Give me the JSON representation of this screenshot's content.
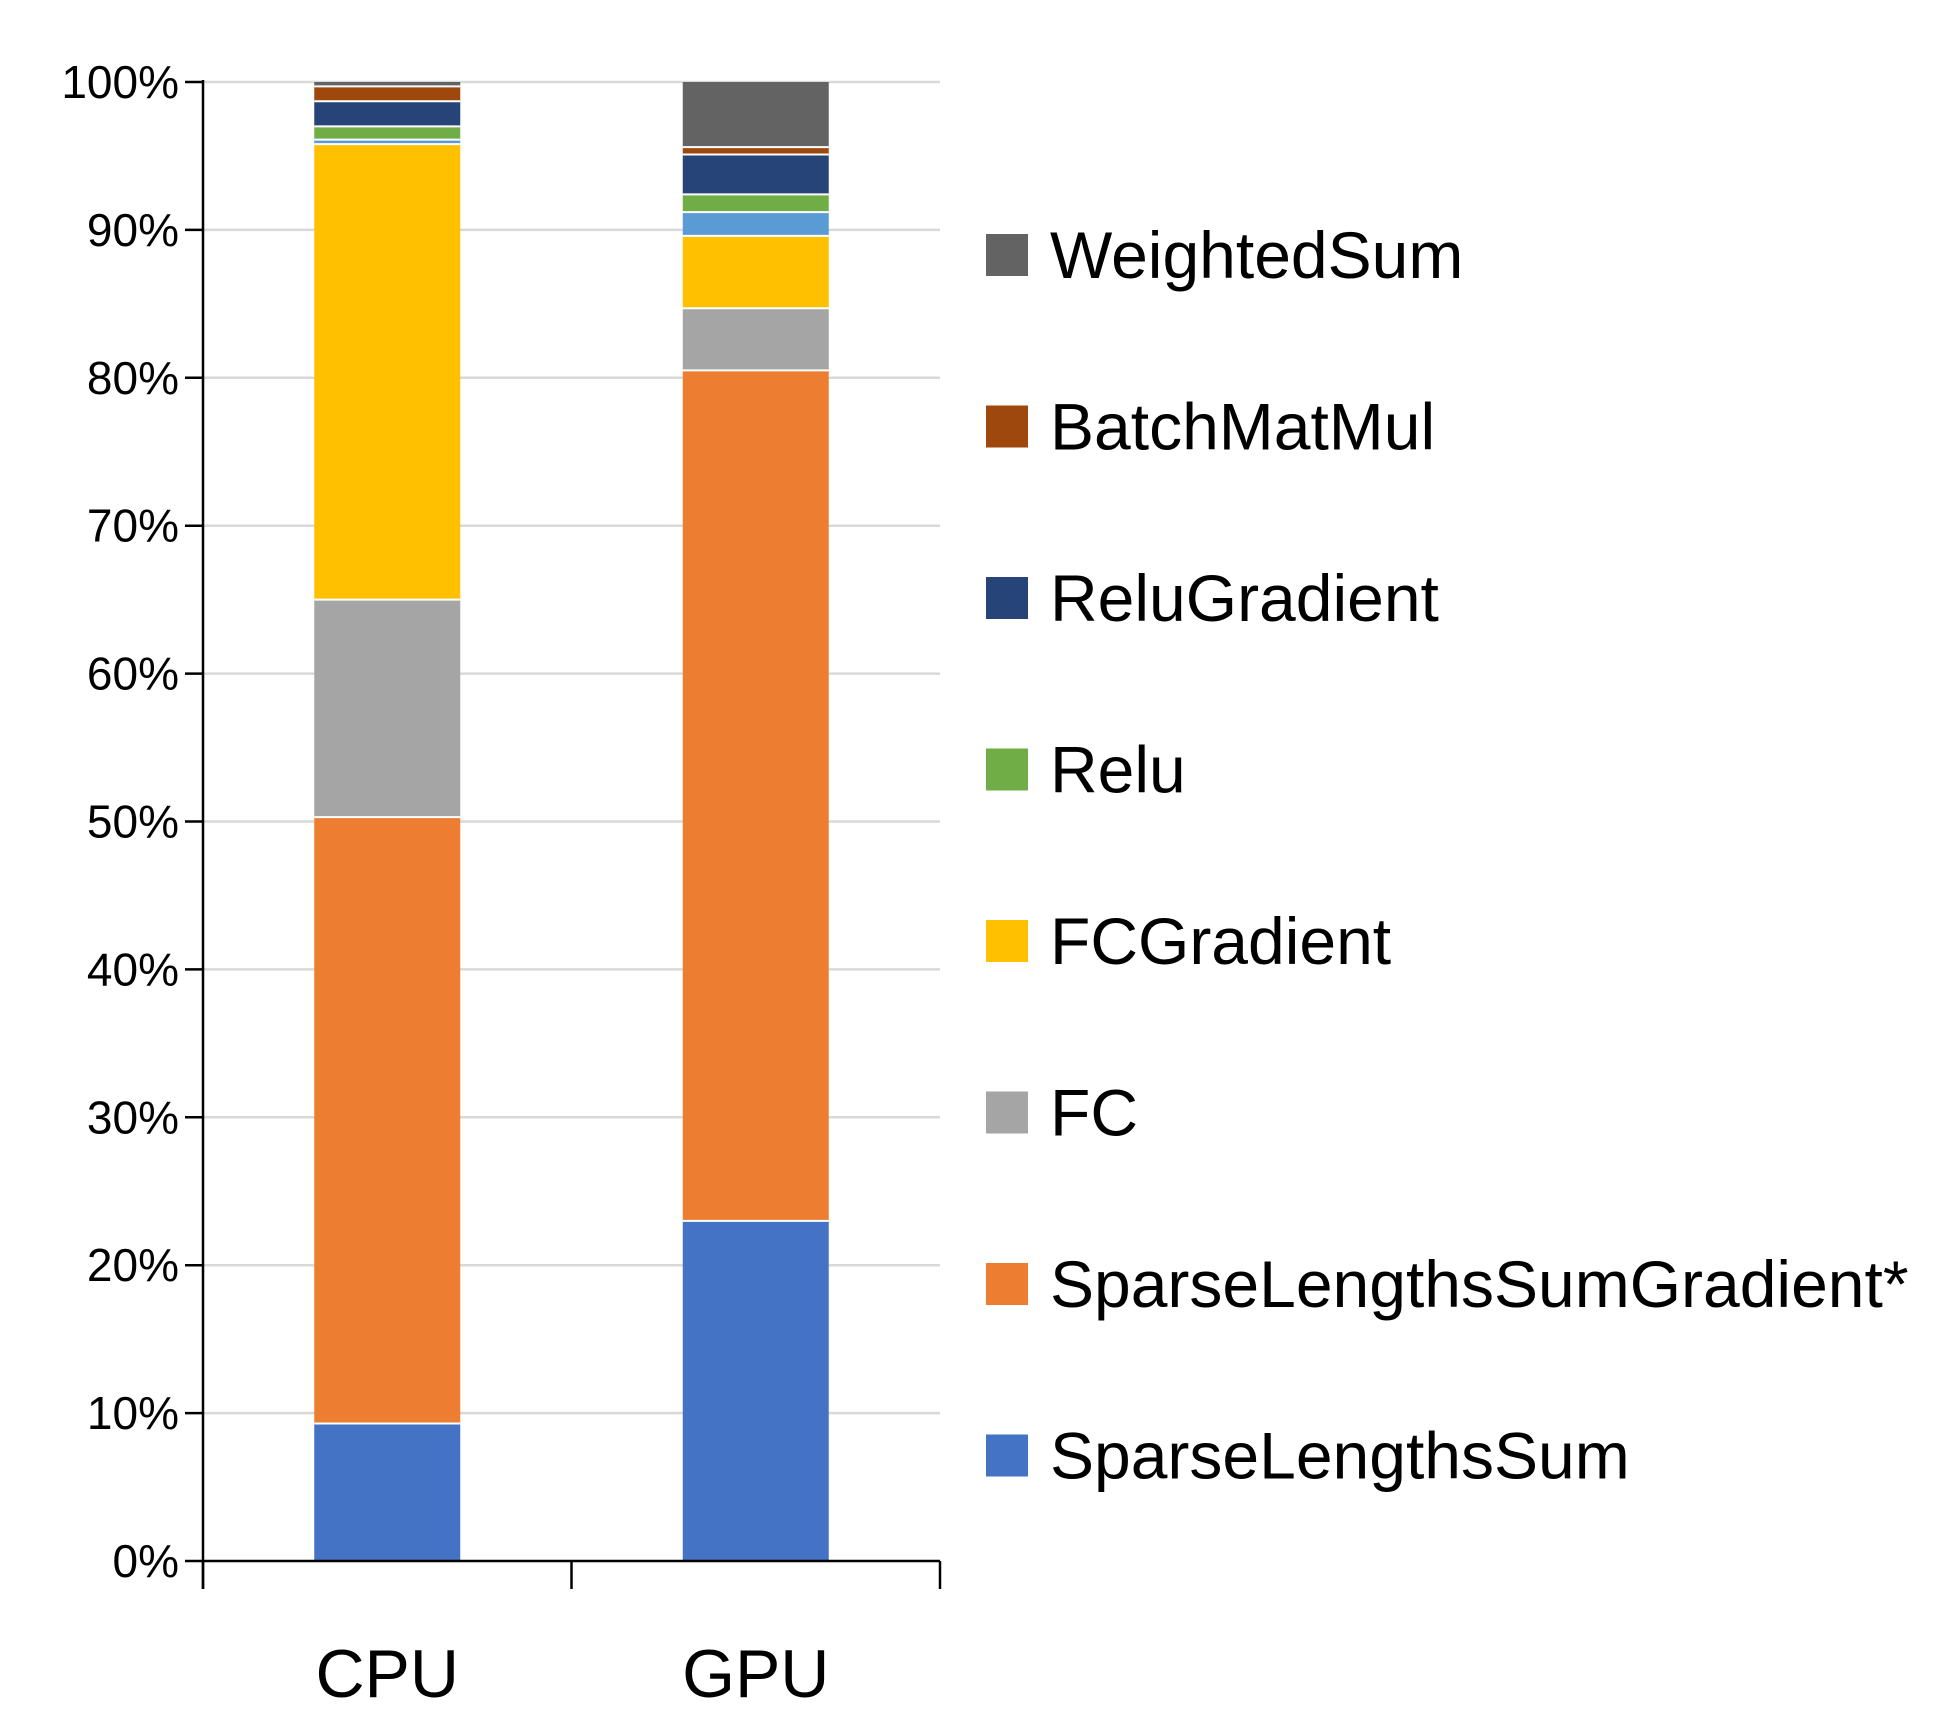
{
  "chart_data": {
    "type": "bar",
    "stacked": true,
    "title": "",
    "xlabel": "",
    "ylabel": "",
    "categories": [
      "CPU",
      "GPU"
    ],
    "ylim": [
      0,
      100
    ],
    "yticks": [
      "0%",
      "10%",
      "20%",
      "30%",
      "40%",
      "50%",
      "60%",
      "70%",
      "80%",
      "90%",
      "100%"
    ],
    "grid": true,
    "legend_position": "right",
    "series": [
      {
        "name": "SparseLengthsSum",
        "color": "#4472C4",
        "values": [
          9.3,
          23.0
        ]
      },
      {
        "name": "SparseLengthsSumGradient*",
        "color": "#ED7D31",
        "values": [
          41.0,
          57.5
        ]
      },
      {
        "name": "FC",
        "color": "#A5A5A5",
        "values": [
          14.7,
          4.2
        ]
      },
      {
        "name": "FCGradient",
        "color": "#FFC000",
        "values": [
          30.8,
          4.9
        ]
      },
      {
        "name": "",
        "color": "#5B9BD5",
        "values": [
          0.3,
          1.6
        ]
      },
      {
        "name": "Relu",
        "color": "#70AD47",
        "values": [
          0.9,
          1.2
        ]
      },
      {
        "name": "ReluGradient",
        "color": "#264478",
        "values": [
          1.7,
          2.7
        ]
      },
      {
        "name": "BatchMatMul",
        "color": "#9E480E",
        "values": [
          1.0,
          0.5
        ]
      },
      {
        "name": "WeightedSum",
        "color": "#636363",
        "values": [
          0.3,
          4.4
        ]
      }
    ],
    "legend_order": [
      "WeightedSum",
      "BatchMatMul",
      "ReluGradient",
      "Relu",
      "FCGradient",
      "FC",
      "SparseLengthsSumGradient*",
      "SparseLengthsSum"
    ]
  }
}
